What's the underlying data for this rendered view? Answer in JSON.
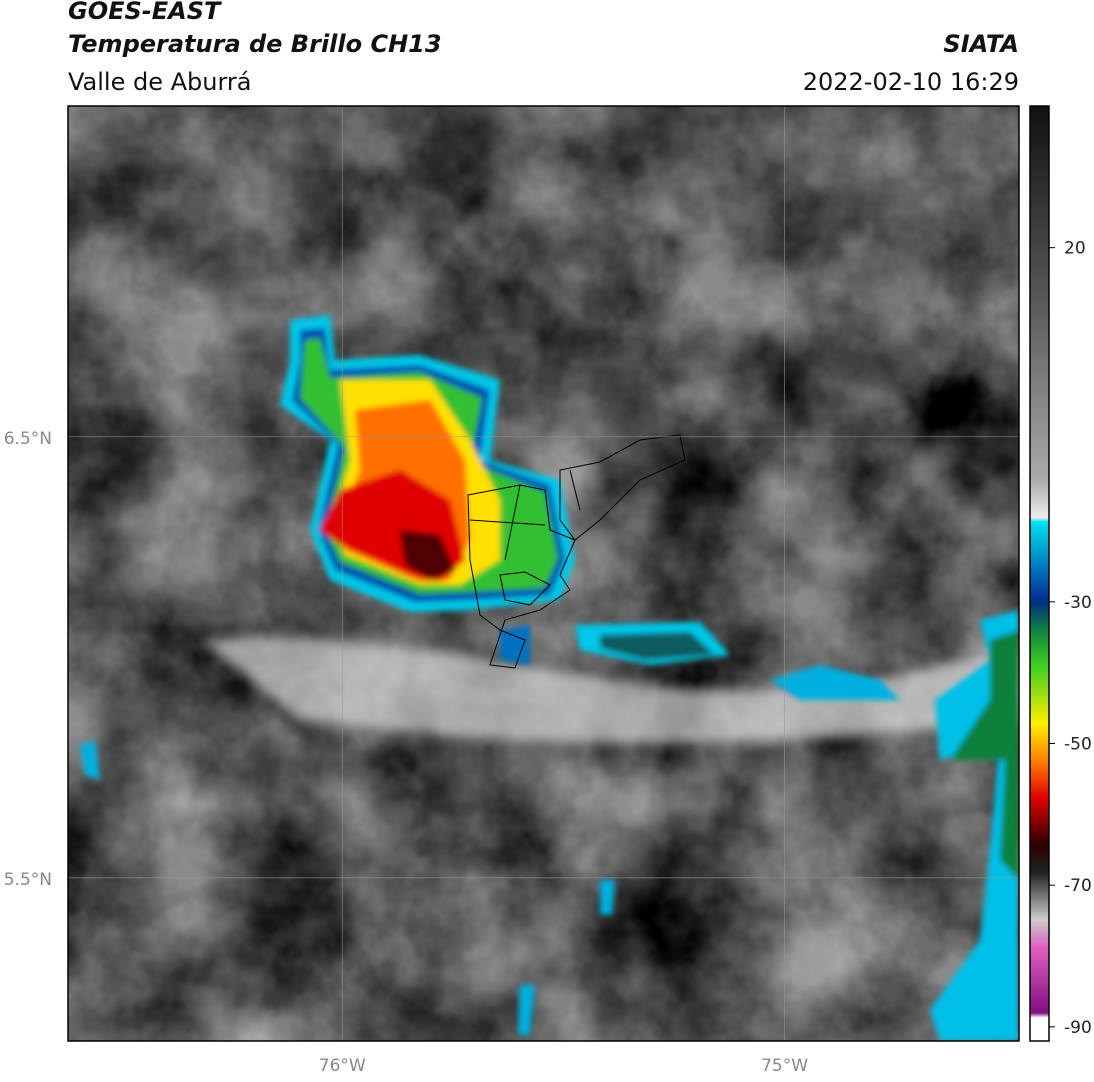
{
  "chart_data": {
    "type": "map",
    "title": "GOES-EAST",
    "subtitle": "Temperatura de Brillo CH13",
    "region": "Valle de Aburrá",
    "source": "SIATA",
    "timestamp": "2022-02-10 16:29",
    "xlim": [
      -76.62,
      -74.47
    ],
    "ylim": [
      5.13,
      7.25
    ],
    "xticks": [
      {
        "value": -76,
        "label": "76°W"
      },
      {
        "value": -75,
        "label": "75°W"
      }
    ],
    "yticks": [
      {
        "value": 6.5,
        "label": "6.5°N"
      },
      {
        "value": 5.5,
        "label": "5.5°N"
      }
    ],
    "grid": true,
    "colorbar": {
      "lim": [
        -92,
        40
      ],
      "ticks": [
        20,
        -30,
        -50,
        -70,
        -90
      ]
    }
  }
}
